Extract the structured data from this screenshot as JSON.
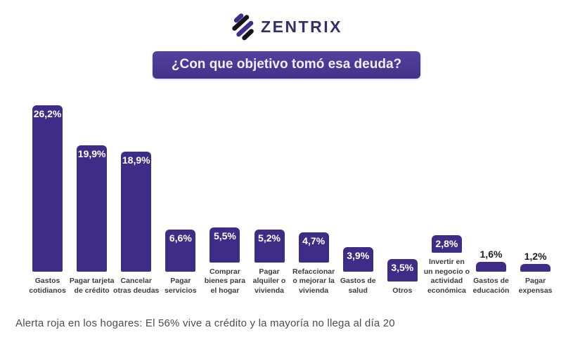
{
  "logo": {
    "text": "ZENTRIX",
    "icon": "zentrix-diagonal-stripes-logo",
    "text_color": "#33306A",
    "icon_purple": "#3E2D8A",
    "icon_black": "#16131F"
  },
  "title_banner": {
    "text": "¿Con que objetivo tomó esa deuda?",
    "bg_color": "#4A3795",
    "text_color": "#F2EEFB"
  },
  "chart_data": {
    "type": "bar",
    "title": "¿Con que objetivo tomó esa deuda?",
    "xlabel": "",
    "ylabel": "",
    "ylim": [
      0,
      27
    ],
    "grid": false,
    "legend": false,
    "bar_color": "#3F2C86",
    "value_label_inside_color": "#FFFFFF",
    "value_label_outside_color": "#1D1D1D",
    "category_label_color": "#3C3C3C",
    "outside_label_threshold": 2.0,
    "categories": [
      "Gastos cotidianos",
      "Pagar tarjeta de crédito",
      "Cancelar otras deudas",
      "Pagar servicios",
      "Comprar bienes para el hogar",
      "Pagar alquiler o vivienda",
      "Refaccionar o mejorar la vivienda",
      "Gastos de salud",
      "Otros",
      "Invertir en un negocio o actividad económica",
      "Gastos de educación",
      "Pagar expensas"
    ],
    "values": [
      26.2,
      19.9,
      18.9,
      6.6,
      5.5,
      5.2,
      4.7,
      3.9,
      3.5,
      2.8,
      1.6,
      1.2
    ],
    "value_labels": [
      "26,2%",
      "19,9%",
      "18,9%",
      "6,6%",
      "5,5%",
      "5,2%",
      "4,7%",
      "3,9%",
      "3,5%",
      "2,8%",
      "1,6%",
      "1,2%"
    ]
  },
  "footer": {
    "text": "Alerta roja en los hogares: El 56% vive a crédito y la mayoría no llega al día 20"
  }
}
